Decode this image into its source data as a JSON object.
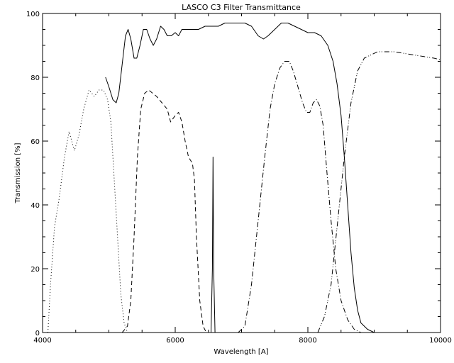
{
  "chart_data": {
    "type": "line",
    "title": "LASCO C3   Filter Transmittance",
    "xlabel": "Wavelength [A]",
    "ylabel": "Transmission [%]",
    "xlim": [
      4000,
      10000
    ],
    "ylim": [
      0,
      100
    ],
    "x_ticks": [
      4000,
      6000,
      8000,
      10000
    ],
    "y_ticks": [
      0,
      20,
      40,
      60,
      80,
      100
    ],
    "x_tick_labels": [
      "4000",
      "6000",
      "8000",
      "10000"
    ],
    "y_tick_labels": [
      "0",
      "20",
      "40",
      "60",
      "80",
      "100"
    ],
    "grid": false,
    "legend": "none",
    "series": [
      {
        "style": "dotted",
        "points": [
          [
            4080,
            0
          ],
          [
            4120,
            15
          ],
          [
            4180,
            33
          ],
          [
            4250,
            42
          ],
          [
            4330,
            55
          ],
          [
            4400,
            63
          ],
          [
            4480,
            57
          ],
          [
            4550,
            62
          ],
          [
            4620,
            70
          ],
          [
            4700,
            76
          ],
          [
            4780,
            74
          ],
          [
            4850,
            76
          ],
          [
            4920,
            76
          ],
          [
            4980,
            73
          ],
          [
            5030,
            66
          ],
          [
            5080,
            48
          ],
          [
            5130,
            30
          ],
          [
            5180,
            12
          ],
          [
            5230,
            3
          ],
          [
            5280,
            0
          ]
        ]
      },
      {
        "style": "dashed",
        "points": [
          [
            5200,
            0
          ],
          [
            5280,
            2
          ],
          [
            5330,
            10
          ],
          [
            5380,
            30
          ],
          [
            5430,
            55
          ],
          [
            5480,
            70
          ],
          [
            5540,
            75
          ],
          [
            5600,
            76
          ],
          [
            5660,
            75
          ],
          [
            5720,
            74
          ],
          [
            5800,
            72
          ],
          [
            5880,
            70
          ],
          [
            5930,
            66
          ],
          [
            6000,
            68
          ],
          [
            6050,
            69
          ],
          [
            6100,
            66
          ],
          [
            6150,
            60
          ],
          [
            6200,
            55
          ],
          [
            6260,
            53
          ],
          [
            6290,
            48
          ],
          [
            6320,
            30
          ],
          [
            6370,
            10
          ],
          [
            6420,
            2
          ],
          [
            6470,
            0
          ]
        ]
      },
      {
        "style": "solid",
        "points": [
          [
            4950,
            80
          ],
          [
            5000,
            77
          ],
          [
            5060,
            73
          ],
          [
            5110,
            72
          ],
          [
            5150,
            75
          ],
          [
            5200,
            84
          ],
          [
            5250,
            93
          ],
          [
            5290,
            95
          ],
          [
            5330,
            92
          ],
          [
            5380,
            86
          ],
          [
            5420,
            86
          ],
          [
            5470,
            90
          ],
          [
            5520,
            95
          ],
          [
            5570,
            95
          ],
          [
            5620,
            92
          ],
          [
            5670,
            90
          ],
          [
            5720,
            92
          ],
          [
            5780,
            96
          ],
          [
            5830,
            95
          ],
          [
            5880,
            93
          ],
          [
            5940,
            93
          ],
          [
            6000,
            94
          ],
          [
            6050,
            93
          ],
          [
            6100,
            95
          ],
          [
            6150,
            95
          ],
          [
            6250,
            95
          ],
          [
            6350,
            95
          ],
          [
            6450,
            96
          ],
          [
            6550,
            96
          ],
          [
            6650,
            96
          ],
          [
            6750,
            97
          ],
          [
            6850,
            97
          ],
          [
            6950,
            97
          ],
          [
            7050,
            97
          ],
          [
            7150,
            96
          ],
          [
            7250,
            93
          ],
          [
            7330,
            92
          ],
          [
            7400,
            93
          ],
          [
            7500,
            95
          ],
          [
            7600,
            97
          ],
          [
            7700,
            97
          ],
          [
            7800,
            96
          ],
          [
            7900,
            95
          ],
          [
            8000,
            94
          ],
          [
            8100,
            94
          ],
          [
            8200,
            93
          ],
          [
            8300,
            90
          ],
          [
            8380,
            85
          ],
          [
            8440,
            78
          ],
          [
            8500,
            68
          ],
          [
            8550,
            55
          ],
          [
            8600,
            40
          ],
          [
            8650,
            25
          ],
          [
            8700,
            14
          ],
          [
            8750,
            7
          ],
          [
            8800,
            3
          ],
          [
            8900,
            1
          ],
          [
            9000,
            0
          ]
        ]
      },
      {
        "style": "solid",
        "points": [
          [
            6540,
            0
          ],
          [
            6560,
            20
          ],
          [
            6570,
            55
          ],
          [
            6580,
            20
          ],
          [
            6600,
            0
          ]
        ]
      },
      {
        "style": "dash-dot",
        "points": [
          [
            6950,
            0
          ],
          [
            7050,
            2
          ],
          [
            7150,
            15
          ],
          [
            7250,
            35
          ],
          [
            7350,
            55
          ],
          [
            7430,
            70
          ],
          [
            7500,
            78
          ],
          [
            7580,
            83
          ],
          [
            7650,
            85
          ],
          [
            7720,
            85
          ],
          [
            7780,
            82
          ],
          [
            7850,
            77
          ],
          [
            7920,
            72
          ],
          [
            7980,
            69
          ],
          [
            8030,
            69
          ],
          [
            8080,
            72
          ],
          [
            8130,
            73
          ],
          [
            8180,
            71
          ],
          [
            8230,
            65
          ],
          [
            8280,
            52
          ],
          [
            8350,
            35
          ],
          [
            8420,
            20
          ],
          [
            8500,
            10
          ],
          [
            8600,
            4
          ],
          [
            8700,
            1
          ],
          [
            8800,
            0
          ]
        ]
      },
      {
        "style": "dash-dot-dot",
        "points": [
          [
            8150,
            0
          ],
          [
            8250,
            5
          ],
          [
            8350,
            15
          ],
          [
            8450,
            35
          ],
          [
            8550,
            55
          ],
          [
            8650,
            72
          ],
          [
            8750,
            82
          ],
          [
            8850,
            86
          ],
          [
            8950,
            87
          ],
          [
            9050,
            88
          ],
          [
            9150,
            88
          ],
          [
            9300,
            88
          ],
          [
            9450,
            87.5
          ],
          [
            9600,
            87
          ],
          [
            9750,
            86.5
          ],
          [
            9900,
            86
          ],
          [
            10000,
            85.5
          ]
        ]
      }
    ]
  }
}
